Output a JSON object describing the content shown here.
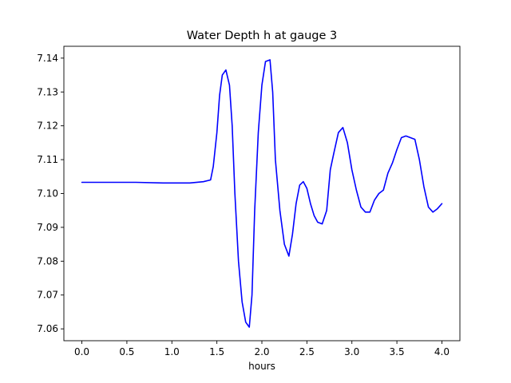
{
  "chart_data": {
    "type": "line",
    "title": "Water Depth h at gauge 3",
    "xlabel": "hours",
    "ylabel": "",
    "xlim": [
      -0.2,
      4.2
    ],
    "ylim": [
      7.0565,
      7.1435
    ],
    "xticks": [
      0.0,
      0.5,
      1.0,
      1.5,
      2.0,
      2.5,
      3.0,
      3.5,
      4.0
    ],
    "xtick_labels": [
      "0.0",
      "0.5",
      "1.0",
      "1.5",
      "2.0",
      "2.5",
      "3.0",
      "3.5",
      "4.0"
    ],
    "yticks": [
      7.06,
      7.07,
      7.08,
      7.09,
      7.1,
      7.11,
      7.12,
      7.13,
      7.14
    ],
    "ytick_labels": [
      "7.06",
      "7.07",
      "7.08",
      "7.09",
      "7.10",
      "7.11",
      "7.12",
      "7.13",
      "7.14"
    ],
    "grid": false,
    "legend": "none",
    "series": [
      {
        "color": "#0000ff",
        "x": [
          0.0,
          0.3,
          0.6,
          0.9,
          1.2,
          1.35,
          1.43,
          1.46,
          1.5,
          1.53,
          1.56,
          1.6,
          1.64,
          1.67,
          1.7,
          1.74,
          1.78,
          1.82,
          1.86,
          1.89,
          1.92,
          1.96,
          2.0,
          2.04,
          2.09,
          2.12,
          2.15,
          2.2,
          2.25,
          2.3,
          2.34,
          2.38,
          2.42,
          2.46,
          2.5,
          2.54,
          2.58,
          2.62,
          2.67,
          2.72,
          2.76,
          2.8,
          2.85,
          2.9,
          2.95,
          3.0,
          3.05,
          3.1,
          3.15,
          3.2,
          3.25,
          3.3,
          3.35,
          3.4,
          3.45,
          3.5,
          3.55,
          3.6,
          3.65,
          3.7,
          3.75,
          3.8,
          3.85,
          3.9,
          3.95,
          4.0
        ],
        "y": [
          7.1033,
          7.1033,
          7.1033,
          7.1031,
          7.1031,
          7.1035,
          7.104,
          7.108,
          7.118,
          7.129,
          7.135,
          7.1365,
          7.132,
          7.12,
          7.1,
          7.08,
          7.068,
          7.062,
          7.0605,
          7.07,
          7.095,
          7.118,
          7.132,
          7.139,
          7.1395,
          7.13,
          7.11,
          7.095,
          7.085,
          7.0815,
          7.088,
          7.097,
          7.1025,
          7.1035,
          7.1015,
          7.097,
          7.0935,
          7.0915,
          7.091,
          7.095,
          7.107,
          7.112,
          7.118,
          7.1195,
          7.115,
          7.107,
          7.101,
          7.096,
          7.0945,
          7.0945,
          7.098,
          7.1,
          7.101,
          7.106,
          7.109,
          7.113,
          7.1165,
          7.117,
          7.1165,
          7.116,
          7.11,
          7.102,
          7.096,
          7.0945,
          7.0955,
          7.097
        ]
      }
    ]
  }
}
